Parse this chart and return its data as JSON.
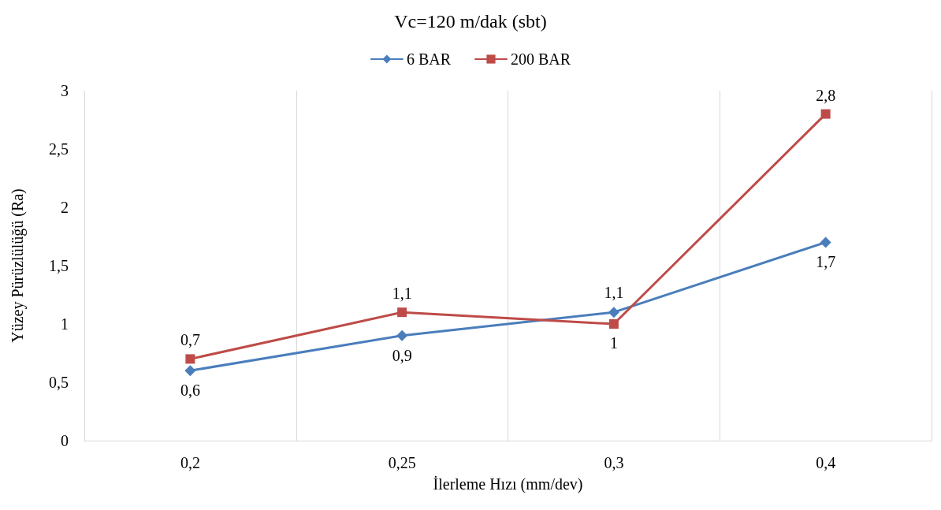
{
  "chart_data": {
    "type": "line",
    "title": "Vc=120 m/dak (sbt)",
    "xlabel": "İlerleme Hızı (mm/dev)",
    "ylabel": "Yüzey Pürüzlülüğü (Ra)",
    "categories": [
      "0,2",
      "0,25",
      "0,3",
      "0,4"
    ],
    "series": [
      {
        "name": "6 BAR",
        "color": "#4a7ebb",
        "marker": "diamond",
        "values": [
          0.6,
          0.9,
          1.1,
          1.7
        ],
        "value_labels": [
          "0,6",
          "0,9",
          "1,1",
          "1,7"
        ]
      },
      {
        "name": "200 BAR",
        "color": "#be4b48",
        "marker": "square",
        "values": [
          0.7,
          1.1,
          1.0,
          2.8
        ],
        "value_labels": [
          "0,7",
          "1,1",
          "1",
          "2,8"
        ]
      }
    ],
    "ylim": [
      0,
      3
    ],
    "yticks": [
      0,
      {
        "value": 0.5,
        "label": "0,5"
      },
      1,
      {
        "value": 1.5,
        "label": "1,5"
      },
      2,
      {
        "value": 2.5,
        "label": "2,5"
      },
      3
    ],
    "grid": "x",
    "legend": "top",
    "line_style": "solid"
  }
}
